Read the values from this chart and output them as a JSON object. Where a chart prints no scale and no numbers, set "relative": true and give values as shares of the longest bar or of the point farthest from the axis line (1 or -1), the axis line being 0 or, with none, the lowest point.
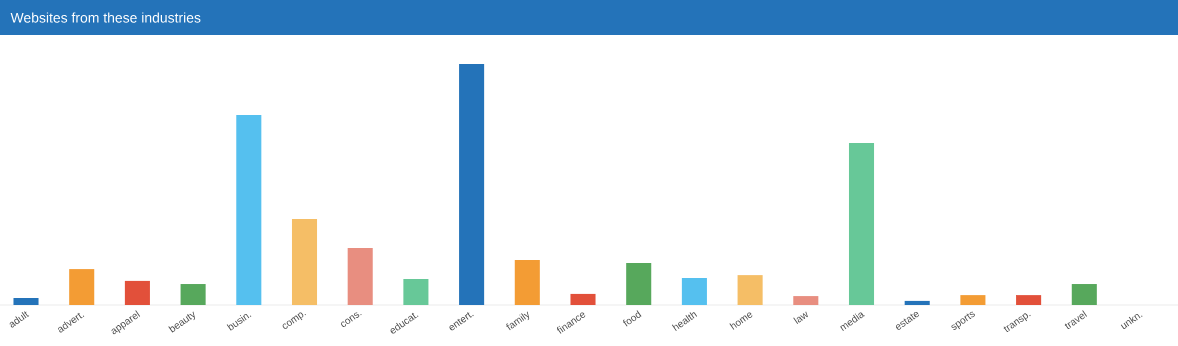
{
  "chart_data": {
    "type": "bar",
    "title": "Websites from these industries",
    "relative": true,
    "categories": [
      "adult",
      "advert.",
      "apparel",
      "beauty",
      "busin.",
      "comp.",
      "cons.",
      "educat.",
      "entert.",
      "family",
      "finance",
      "food",
      "health",
      "home",
      "law",
      "media",
      "estate",
      "sports",
      "transp.",
      "travel",
      "unkn."
    ],
    "values": [
      0.029,
      0.149,
      0.1,
      0.087,
      0.788,
      0.357,
      0.237,
      0.108,
      1,
      0.187,
      0.046,
      0.174,
      0.112,
      0.124,
      0.037,
      0.672,
      0.017,
      0.041,
      0.041,
      0.087,
      0
    ],
    "colors": [
      "#2473b9",
      "#f39c34",
      "#e2503a",
      "#57a85c",
      "#55c0ef",
      "#f5be66",
      "#e88e80",
      "#67c898",
      "#2473b9",
      "#f39c34",
      "#e2503a",
      "#57a85c",
      "#55c0ef",
      "#f5be66",
      "#e88e80",
      "#67c898",
      "#2473b9",
      "#f39c34",
      "#e2503a",
      "#57a85c",
      "#55c0ef"
    ]
  }
}
